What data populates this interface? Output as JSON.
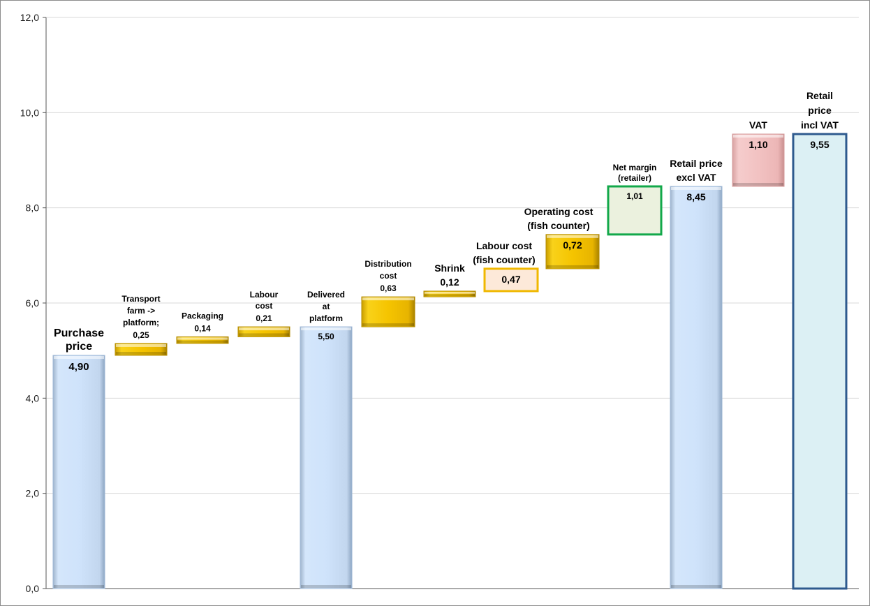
{
  "chart_data": {
    "type": "bar",
    "subtype": "waterfall",
    "title": "",
    "xlabel": "",
    "ylabel": "",
    "ylim": [
      0,
      12
    ],
    "yticks": [
      "0,0",
      "2,0",
      "4,0",
      "6,0",
      "8,0",
      "10,0",
      "12,0"
    ],
    "grid": true,
    "legend": "none",
    "steps": [
      {
        "label_lines": [
          "Purchase",
          "price"
        ],
        "value_label": "4,90",
        "base": 0,
        "value": 4.9,
        "kind": "total",
        "style": "blue"
      },
      {
        "label_lines": [
          "Transport",
          "farm ->",
          "platform;"
        ],
        "value_label": "0,25",
        "base": 4.9,
        "value": 0.25,
        "kind": "delta",
        "style": "gold"
      },
      {
        "label_lines": [
          "Packaging"
        ],
        "value_label": "0,14",
        "base": 5.15,
        "value": 0.14,
        "kind": "delta",
        "style": "gold"
      },
      {
        "label_lines": [
          "Labour",
          "cost"
        ],
        "value_label": "0,21",
        "base": 5.29,
        "value": 0.21,
        "kind": "delta",
        "style": "gold"
      },
      {
        "label_lines": [
          "Delivered",
          "at",
          "platform"
        ],
        "value_label": "5,50",
        "base": 0,
        "value": 5.5,
        "kind": "total",
        "style": "blue"
      },
      {
        "label_lines": [
          "Distribution",
          "cost"
        ],
        "value_label": "0,63",
        "base": 5.5,
        "value": 0.63,
        "kind": "delta",
        "style": "gold"
      },
      {
        "label_lines": [
          "Shrink"
        ],
        "value_label": "0,12",
        "base": 6.13,
        "value": 0.12,
        "kind": "delta",
        "style": "gold"
      },
      {
        "label_lines": [
          "Labour cost",
          "(fish counter)"
        ],
        "value_label": "0,47",
        "base": 6.25,
        "value": 0.47,
        "kind": "delta",
        "style": "peach"
      },
      {
        "label_lines": [
          "Operating cost",
          "(fish counter)"
        ],
        "value_label": "0,72",
        "base": 6.72,
        "value": 0.72,
        "kind": "delta",
        "style": "gold"
      },
      {
        "label_lines": [
          "Net margin",
          "(retailer)"
        ],
        "value_label": "1,01",
        "base": 7.44,
        "value": 1.01,
        "kind": "delta",
        "style": "green"
      },
      {
        "label_lines": [
          "Retail price",
          "excl VAT"
        ],
        "value_label": "8,45",
        "base": 0,
        "value": 8.45,
        "kind": "total",
        "style": "blue"
      },
      {
        "label_lines": [
          "VAT"
        ],
        "value_label": "1,10",
        "base": 8.45,
        "value": 1.1,
        "kind": "delta",
        "style": "pink"
      },
      {
        "label_lines": [
          "Retail",
          "price",
          "incl VAT"
        ],
        "value_label": "9,55",
        "base": 0,
        "value": 9.55,
        "kind": "total",
        "style": "navy"
      }
    ],
    "colors": {
      "blue_fill": "#cfe3fb",
      "blue_edge": "#9db7d6",
      "gold_fill": "#f5c400",
      "gold_edge": "#b38b00",
      "peach_fill": "#fde9d9",
      "peach_edge": "#f0b800",
      "green_fill": "#ebf1de",
      "green_edge": "#12a84a",
      "pink_fill": "#f2c2c2",
      "pink_edge": "#d49a9a",
      "navy_fill": "#dcf0f4",
      "navy_edge": "#2e5a8e",
      "grid": "#d9d9d9",
      "axis": "#555555"
    }
  }
}
